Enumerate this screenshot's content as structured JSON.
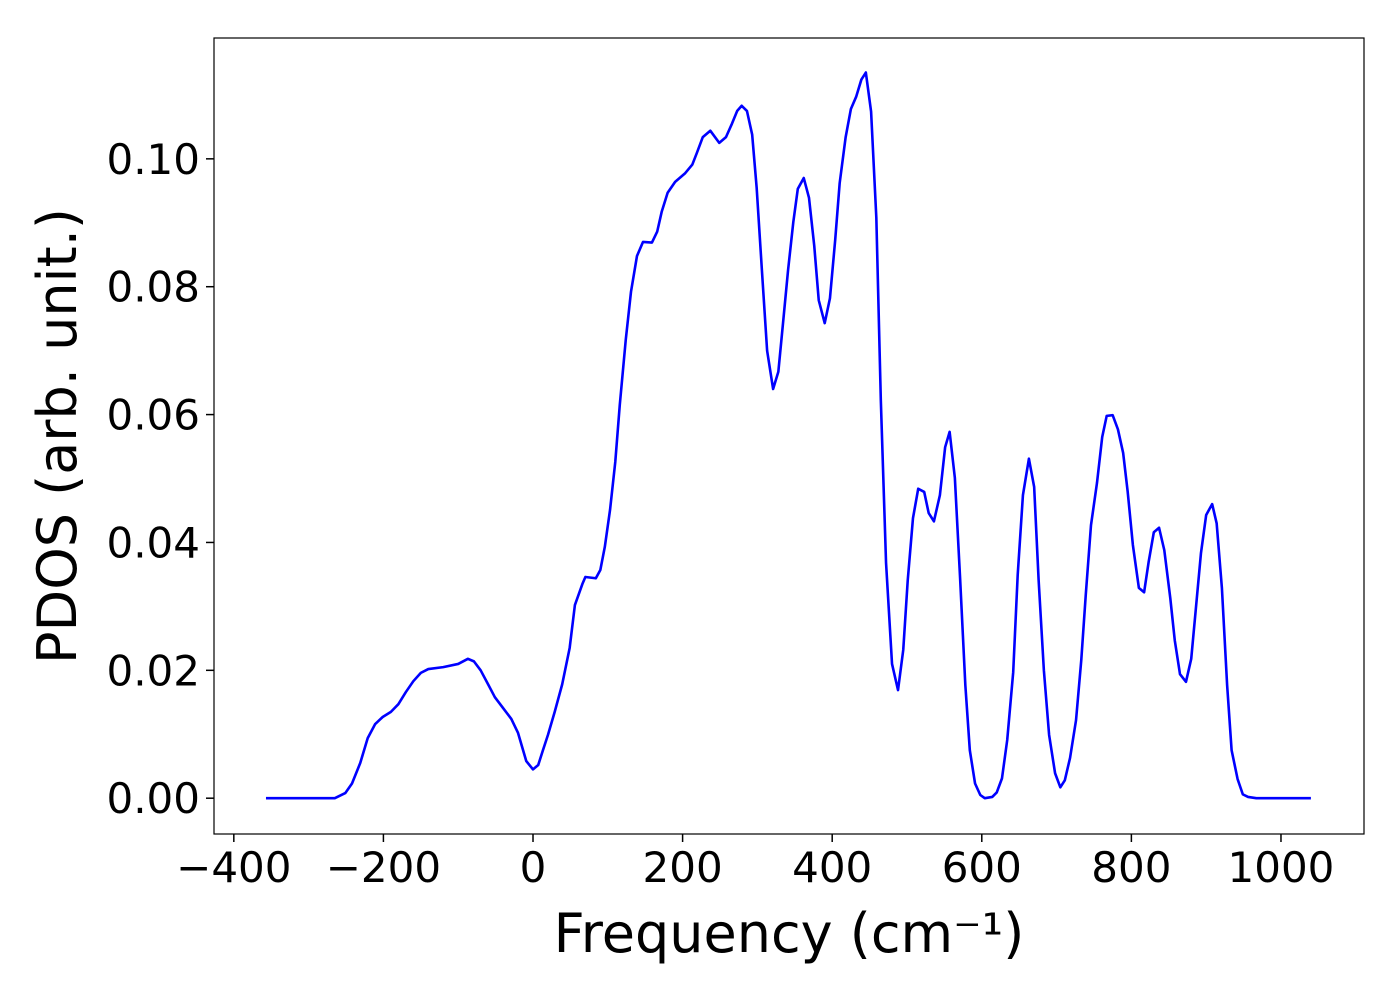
{
  "chart_data": {
    "type": "line",
    "x_label": "Frequency (cm⁻¹)",
    "y_label": "PDOS (arb. unit.)",
    "xlim": [
      -426.5,
      1111
    ],
    "ylim": [
      -0.0056,
      0.1189
    ],
    "xticks": [
      {
        "value": -400,
        "label": "−400"
      },
      {
        "value": -200,
        "label": "−200"
      },
      0,
      200,
      400,
      600,
      800,
      1000
    ],
    "yticks": [
      {
        "value": 0,
        "label": "0.00"
      },
      0.02,
      0.04,
      0.06,
      0.08,
      {
        "value": 0.1,
        "label": "0.10"
      }
    ],
    "grid": false,
    "series": [
      {
        "color": "#0000ff",
        "x": [
          -357,
          -265,
          -251,
          -242,
          -231,
          -221,
          -211,
          -201,
          -190,
          -180,
          -170,
          -160,
          -150,
          -140,
          -120,
          -100,
          -87,
          -79,
          -70,
          -60,
          -51,
          -40,
          -29,
          -20,
          -9,
          0,
          7,
          13,
          20,
          29,
          39,
          49,
          56,
          66,
          70,
          84,
          90,
          96,
          103,
          110,
          116,
          124,
          131,
          139,
          147,
          159,
          166,
          172,
          180,
          190,
          203,
          213,
          219,
          227,
          237,
          249,
          258,
          266,
          273,
          279,
          286,
          293,
          299,
          306,
          313,
          321,
          328,
          334,
          341,
          348,
          354,
          362,
          369,
          376,
          382,
          390,
          397,
          404,
          410,
          418,
          425,
          432,
          439,
          445,
          452,
          459,
          465,
          472,
          480,
          488,
          495,
          501,
          508,
          515,
          523,
          529,
          536,
          544,
          551,
          557,
          564,
          571,
          578,
          584,
          591,
          598,
          604,
          614,
          620,
          627,
          634,
          642,
          648,
          655,
          663,
          670,
          676,
          683,
          690,
          698,
          705,
          711,
          718,
          726,
          733,
          739,
          746,
          754,
          761,
          767,
          775,
          782,
          789,
          795,
          802,
          810,
          817,
          823,
          830,
          837,
          844,
          852,
          858,
          865,
          873,
          880,
          886,
          893,
          900,
          908,
          914,
          921,
          928,
          934,
          942,
          949,
          956,
          967,
          1040
        ],
        "values": [
          0,
          0,
          0.0008,
          0.0023,
          0.0055,
          0.0094,
          0.0116,
          0.0127,
          0.0135,
          0.0147,
          0.0166,
          0.0183,
          0.0196,
          0.0202,
          0.0205,
          0.021,
          0.0218,
          0.0214,
          0.02,
          0.0178,
          0.0158,
          0.0141,
          0.0124,
          0.0102,
          0.0058,
          0.0045,
          0.0052,
          0.0074,
          0.0099,
          0.0135,
          0.0178,
          0.0235,
          0.0302,
          0.0335,
          0.0346,
          0.0344,
          0.0357,
          0.0393,
          0.0451,
          0.0526,
          0.0615,
          0.0717,
          0.0792,
          0.0848,
          0.087,
          0.0869,
          0.0886,
          0.0917,
          0.0947,
          0.0964,
          0.0977,
          0.0991,
          0.1009,
          0.1034,
          0.1044,
          0.1025,
          0.1034,
          0.1055,
          0.1075,
          0.1083,
          0.1075,
          0.1038,
          0.0955,
          0.0826,
          0.07,
          0.064,
          0.0667,
          0.074,
          0.0826,
          0.0901,
          0.0953,
          0.097,
          0.0939,
          0.0864,
          0.0779,
          0.0743,
          0.0782,
          0.0873,
          0.0962,
          0.1034,
          0.1078,
          0.1097,
          0.1124,
          0.1135,
          0.1074,
          0.0908,
          0.0623,
          0.0368,
          0.021,
          0.0169,
          0.0232,
          0.0341,
          0.0438,
          0.0484,
          0.0479,
          0.0446,
          0.0433,
          0.0474,
          0.0549,
          0.0573,
          0.0501,
          0.0344,
          0.0177,
          0.0075,
          0.0023,
          0.0005,
          0,
          0.0002,
          0.0009,
          0.0031,
          0.0091,
          0.0197,
          0.0349,
          0.0474,
          0.0531,
          0.0487,
          0.0341,
          0.02,
          0.0099,
          0.0039,
          0.0017,
          0.0028,
          0.0063,
          0.0122,
          0.0216,
          0.0318,
          0.0427,
          0.0493,
          0.0565,
          0.0598,
          0.0599,
          0.0577,
          0.054,
          0.048,
          0.0396,
          0.0329,
          0.0322,
          0.0369,
          0.0416,
          0.0423,
          0.0388,
          0.0313,
          0.0247,
          0.0194,
          0.0182,
          0.0218,
          0.0294,
          0.0383,
          0.0443,
          0.046,
          0.043,
          0.0329,
          0.0177,
          0.0075,
          0.003,
          0.0006,
          0.0002,
          0,
          0
        ]
      }
    ]
  }
}
